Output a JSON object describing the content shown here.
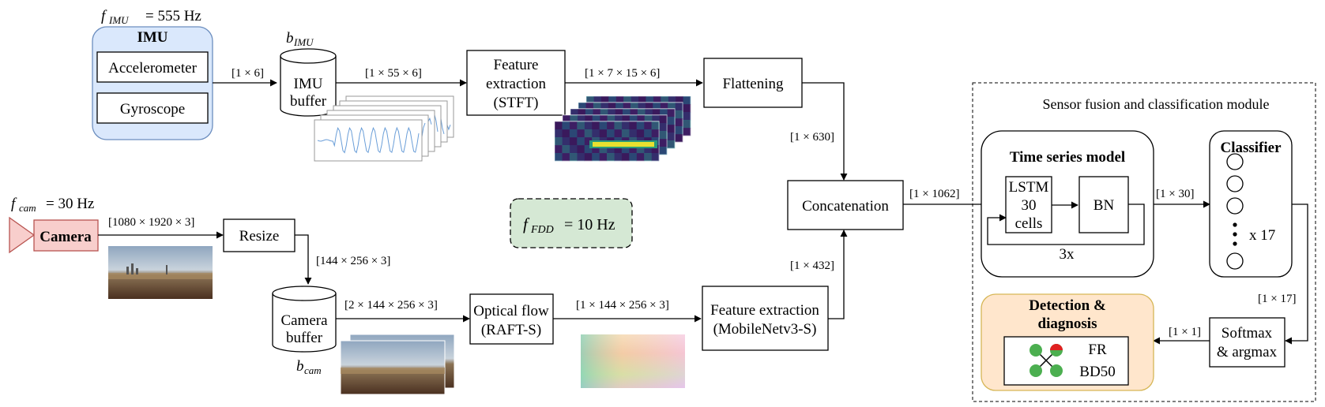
{
  "imu": {
    "freq_symbol": "f",
    "freq_sub": "IMU",
    "freq_value": "= 555 Hz",
    "title": "IMU",
    "accelerometer": "Accelerometer",
    "gyroscope": "Gyroscope",
    "out_dim": "[1 × 6]"
  },
  "imu_buffer": {
    "symbol": "b",
    "sub": "IMU",
    "line1": "IMU",
    "line2": "buffer",
    "out_dim": "[1 × 55 × 6]"
  },
  "feature_extraction_stft": {
    "line1": "Feature",
    "line2": "extraction",
    "line3": "(STFT)",
    "out_dim": "[1 × 7 × 15 × 6]"
  },
  "flattening": {
    "label": "Flattening",
    "out_dim": "[1 × 630]"
  },
  "camera": {
    "freq_symbol": "f",
    "freq_sub": "cam",
    "freq_value": "= 30 Hz",
    "label": "Camera",
    "out_dim": "[1080 × 1920 × 3]"
  },
  "resize": {
    "label": "Resize",
    "out_dim": "[144 × 256 × 3]"
  },
  "camera_buffer": {
    "symbol": "b",
    "sub": "cam",
    "line1": "Camera",
    "line2": "buffer",
    "out_dim": "[2 × 144 × 256 × 3]"
  },
  "optical_flow": {
    "line1": "Optical flow",
    "line2": "(RAFT-S)",
    "out_dim": "[1 × 144 × 256 × 3]"
  },
  "feature_extraction_mobilenet": {
    "line1": "Feature extraction",
    "line2": "(MobileNetv3-S)",
    "out_dim": "[1 × 432]"
  },
  "fdd": {
    "symbol": "f",
    "sub": "FDD",
    "value": "= 10 Hz"
  },
  "concatenation": {
    "label": "Concatenation",
    "out_dim": "[1 × 1062]"
  },
  "fusion_module": {
    "title": "Sensor fusion and classification module",
    "time_series_title": "Time series model",
    "lstm_line1": "LSTM",
    "lstm_line2": "30",
    "lstm_line3": "cells",
    "bn": "BN",
    "repeat": "3x",
    "ts_out_dim": "[1 × 30]",
    "classifier_title": "Classifier",
    "classifier_count": "x 17",
    "classifier_out_dim": "[1 × 17]",
    "softmax_line1": "Softmax",
    "softmax_line2": "& argmax",
    "softmax_out_dim": "[1 × 1]",
    "detection_line1": "Detection &",
    "detection_line2": "diagnosis",
    "fault_line1": "FR",
    "fault_line2": "BD50"
  },
  "colors": {
    "imu_fill": "#dae8fc",
    "imu_stroke": "#6c8ebf",
    "camera_fill": "#f8cecc",
    "camera_stroke": "#b85450",
    "fdd_fill": "#d5e8d4",
    "detection_fill": "#ffe6cc",
    "detection_stroke": "#d6b656",
    "rotor_green": "#4caf50",
    "rotor_red": "#e02020",
    "spectrogram_bg": "#3b1a5c",
    "signal_line": "#6a9ed8"
  }
}
